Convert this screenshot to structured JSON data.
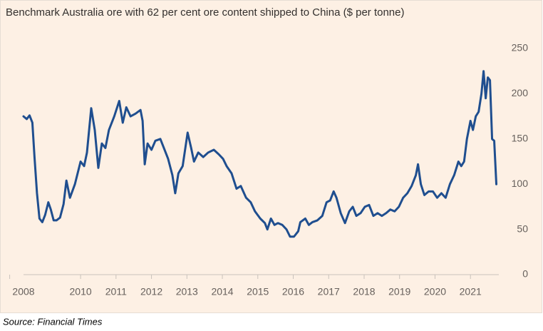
{
  "chart_data": {
    "type": "line",
    "title": "Benchmark Australia ore with 62 per cent ore content shipped to China ($ per tonne)",
    "x": [
      2008.39,
      2008.48,
      2008.56,
      2008.64,
      2008.7,
      2008.77,
      2008.84,
      2008.92,
      2009.0,
      2009.09,
      2009.16,
      2009.24,
      2009.32,
      2009.42,
      2009.52,
      2009.6,
      2009.7,
      2009.84,
      2010.0,
      2010.1,
      2010.18,
      2010.3,
      2010.4,
      2010.5,
      2010.6,
      2010.7,
      2010.8,
      2010.95,
      2011.09,
      2011.19,
      2011.29,
      2011.41,
      2011.55,
      2011.69,
      2011.75,
      2011.81,
      2011.89,
      2012.0,
      2012.11,
      2012.25,
      2012.35,
      2012.47,
      2012.59,
      2012.67,
      2012.76,
      2012.88,
      2013.02,
      2013.12,
      2013.2,
      2013.32,
      2013.46,
      2013.6,
      2013.76,
      2013.9,
      2014.02,
      2014.12,
      2014.26,
      2014.4,
      2014.52,
      2014.67,
      2014.8,
      2014.92,
      2015.07,
      2015.2,
      2015.27,
      2015.37,
      2015.47,
      2015.57,
      2015.69,
      2015.81,
      2015.91,
      2016.02,
      2016.14,
      2016.2,
      2016.34,
      2016.44,
      2016.54,
      2016.68,
      2016.82,
      2016.94,
      2017.04,
      2017.14,
      2017.22,
      2017.34,
      2017.46,
      2017.58,
      2017.68,
      2017.78,
      2017.9,
      2018.02,
      2018.14,
      2018.26,
      2018.38,
      2018.5,
      2018.62,
      2018.74,
      2018.86,
      2018.98,
      2019.1,
      2019.22,
      2019.34,
      2019.46,
      2019.52,
      2019.6,
      2019.7,
      2019.82,
      2019.94,
      2020.06,
      2020.18,
      2020.3,
      2020.42,
      2020.54,
      2020.66,
      2020.74,
      2020.82,
      2020.9,
      2021.0,
      2021.07,
      2021.15,
      2021.23,
      2021.31,
      2021.37,
      2021.43,
      2021.49,
      2021.55,
      2021.61,
      2021.67,
      2021.73
    ],
    "values": [
      175,
      172,
      176,
      168,
      130,
      90,
      62,
      58,
      66,
      80,
      72,
      60,
      60,
      63,
      78,
      104,
      85,
      100,
      125,
      120,
      135,
      184,
      160,
      118,
      145,
      140,
      160,
      175,
      192,
      168,
      185,
      175,
      178,
      182,
      170,
      122,
      145,
      138,
      148,
      150,
      140,
      128,
      110,
      90,
      112,
      120,
      157,
      140,
      125,
      135,
      130,
      135,
      138,
      133,
      128,
      120,
      112,
      95,
      98,
      85,
      80,
      70,
      62,
      57,
      50,
      62,
      55,
      57,
      55,
      50,
      42,
      42,
      48,
      58,
      62,
      55,
      58,
      60,
      65,
      80,
      82,
      92,
      85,
      68,
      57,
      70,
      75,
      65,
      68,
      75,
      77,
      65,
      68,
      65,
      68,
      72,
      70,
      75,
      85,
      90,
      98,
      110,
      122,
      100,
      88,
      92,
      92,
      85,
      90,
      85,
      100,
      110,
      125,
      120,
      125,
      150,
      170,
      160,
      175,
      180,
      200,
      225,
      195,
      218,
      215,
      150,
      148,
      100
    ],
    "color": "#1f4e8f",
    "xlim": [
      2008,
      2021.8
    ],
    "xticks": [
      2008,
      2010,
      2011,
      2012,
      2013,
      2014,
      2015,
      2016,
      2017,
      2018,
      2019,
      2020,
      2021
    ],
    "ylim": [
      0,
      250
    ],
    "yticks": [
      0,
      50,
      100,
      150,
      200,
      250
    ],
    "grid": false
  },
  "source": "Source: Financial Times"
}
